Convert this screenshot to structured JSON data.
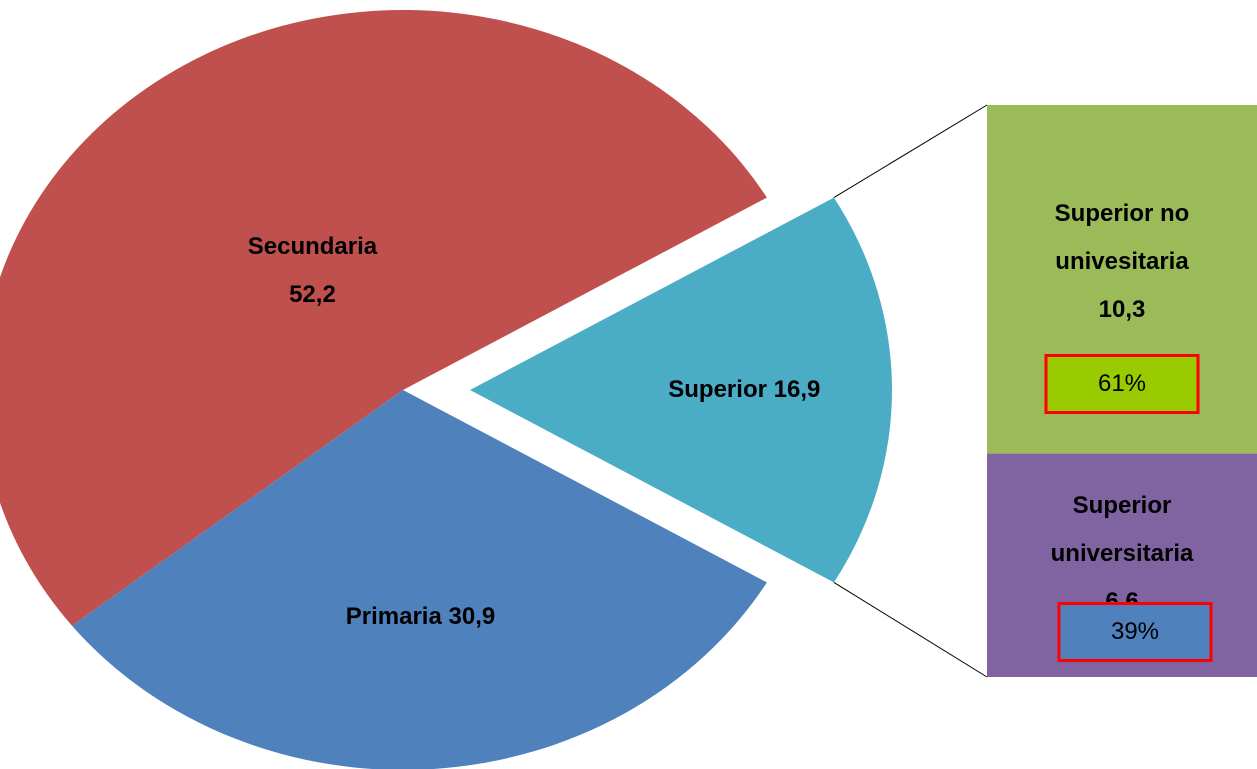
{
  "chart_data": {
    "type": "pie",
    "categories": [
      "Secundaria",
      "Primaria",
      "Superior"
    ],
    "values": [
      52.2,
      30.9,
      16.9
    ],
    "value_labels": [
      "52,2",
      "30,9",
      "16,9"
    ],
    "colors": [
      "#c0504d",
      "#4f81bd",
      "#4bacc6"
    ],
    "breakdown": {
      "categories": [
        "Superior no univesitaria",
        "Superior universitaria"
      ],
      "values": [
        10.3,
        6.6
      ],
      "value_labels": [
        "10,3",
        "6,6"
      ],
      "colors": [
        "#9bbb59",
        "#8064a2"
      ],
      "shares": [
        61,
        39
      ],
      "share_labels": [
        "61%",
        "39%"
      ],
      "share_colors": [
        "#99cc00",
        "#4f81bd"
      ],
      "share_border": "#ff0000"
    }
  }
}
